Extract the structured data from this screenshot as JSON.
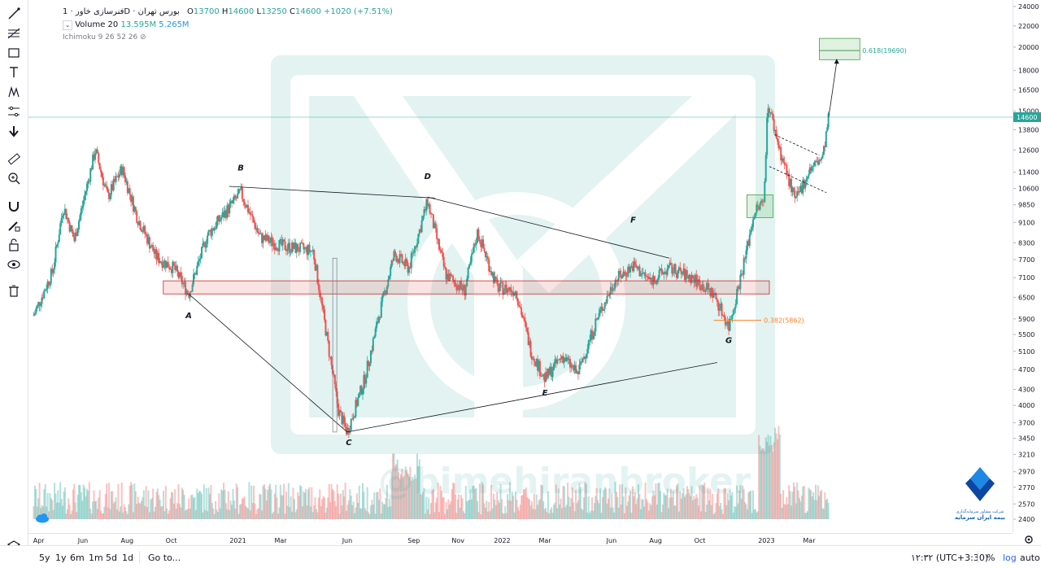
{
  "legend": {
    "symbol": "فنرسازی خاور",
    "interval": "1D",
    "exchange": "بورس تهران",
    "open_label": "O",
    "open": "13700",
    "high_label": "H",
    "high": "14600",
    "low_label": "L",
    "low": "13250",
    "close_label": "C",
    "close": "14600",
    "change": "+1020 (+7.51%)",
    "volume_label": "Volume 20",
    "volume_value_1": "13.595M",
    "volume_value_2": "5.265M",
    "ichimoku_label": "Ichimoku 9 26 52 26"
  },
  "watermark": "@bimehiranbroker",
  "logo": {
    "line1": "شرکت مشاور سرمایه‌گذاری",
    "line2": "بیمه ایران سرمایه"
  },
  "bottom_bar": {
    "ranges": [
      "5y",
      "1y",
      "6m",
      "1m",
      "5d",
      "1d"
    ],
    "goto": "Go to...",
    "clock": "۱۲:۳۲ (UTC+3:30)",
    "percent": "%",
    "log": "log",
    "auto": "auto"
  },
  "chart_data": {
    "type": "candlestick",
    "scale": "log",
    "price_axis": {
      "ticks": [
        24000,
        22000,
        20000,
        18000,
        16500,
        15000,
        13800,
        12600,
        11400,
        10600,
        9850,
        9100,
        8300,
        7700,
        7100,
        6500,
        5900,
        5500,
        5100,
        4700,
        4300,
        4000,
        3700,
        3450,
        3210,
        2970,
        2770,
        2570,
        2400
      ],
      "current_price": 14600
    },
    "time_axis": {
      "labels": [
        "Apr",
        "Jun",
        "Aug",
        "Oct",
        "2021",
        "Mar",
        "Jun",
        "Sep",
        "Nov",
        "2022",
        "Mar",
        "Jun",
        "Aug",
        "Oct",
        "2023",
        "Mar"
      ]
    },
    "wave_points": [
      {
        "label": "A",
        "date": "2020-10-25",
        "price": 6600
      },
      {
        "label": "B",
        "date": "2021-01-05",
        "price": 10600
      },
      {
        "label": "C",
        "date": "2021-06-01",
        "price": 3550
      },
      {
        "label": "D",
        "date": "2021-09-20",
        "price": 10200
      },
      {
        "label": "E",
        "date": "2022-03-01",
        "price": 4500
      },
      {
        "label": "F",
        "date": "2022-07-01",
        "price": 7700
      },
      {
        "label": "G",
        "date": "2022-11-10",
        "price": 5700
      }
    ],
    "annotations": [
      {
        "text": "0.382(5862)",
        "price": 5862,
        "color": "#ff7f27"
      },
      {
        "text": "0.618(19690)",
        "price": 19690,
        "color": "#26a69a"
      }
    ],
    "zones": [
      {
        "name": "support-resistance",
        "from": 6600,
        "to": 7000,
        "color": "#e57373"
      },
      {
        "name": "breakout-box",
        "from": 9300,
        "to": 10300,
        "color": "#66bb6a"
      },
      {
        "name": "target-box",
        "from": 18900,
        "to": 20800,
        "color": "#66bb6a"
      }
    ]
  }
}
